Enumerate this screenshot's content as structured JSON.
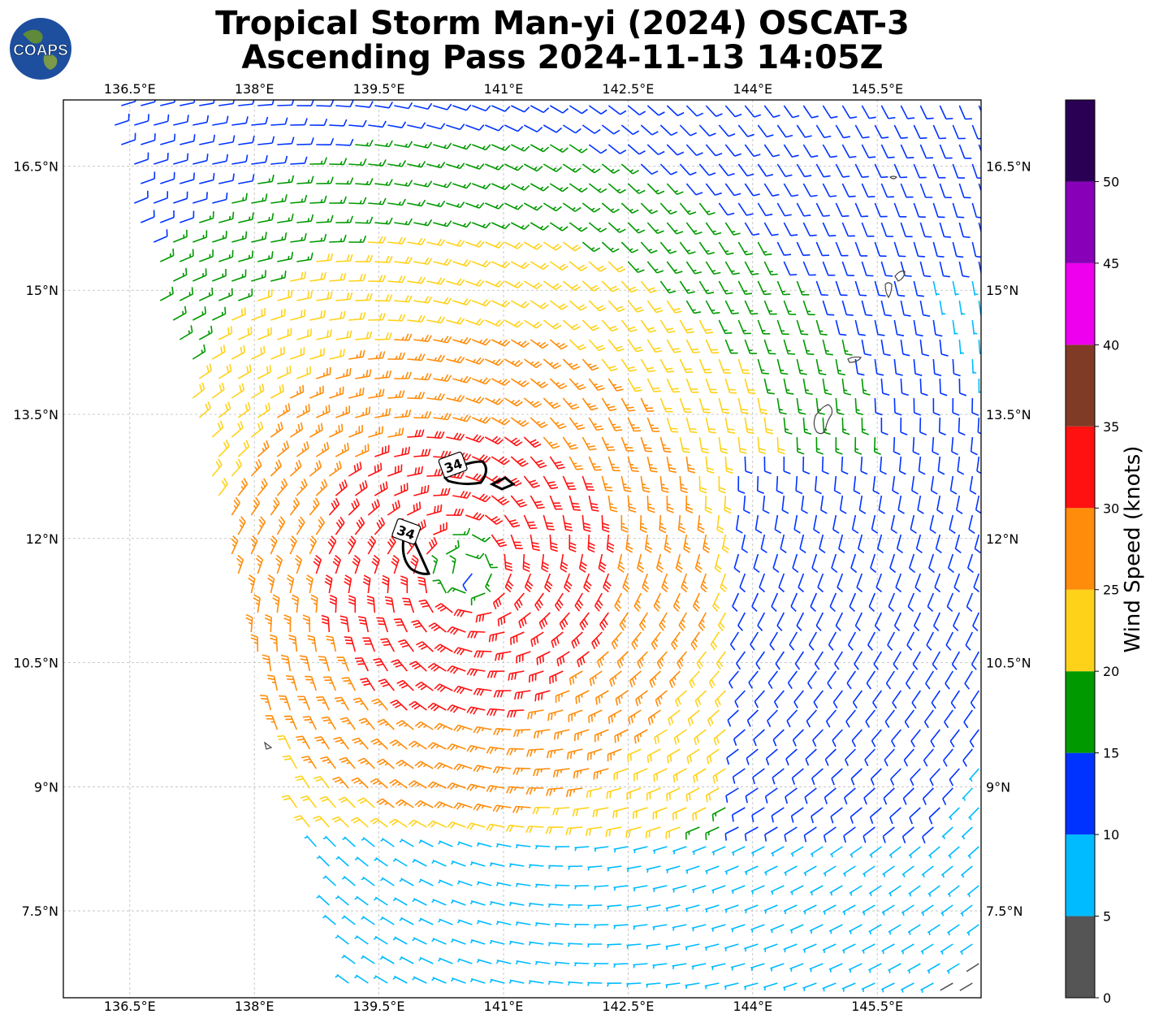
{
  "title": {
    "line1": "Tropical Storm Man-yi (2024) OSCAT-3",
    "line2": "Ascending Pass 2024-11-13 14:05Z"
  },
  "logo": {
    "text": "COAPS",
    "icon": "globe-icon"
  },
  "map": {
    "lon_range": [
      135.7,
      146.75
    ],
    "lat_range": [
      6.45,
      17.3
    ],
    "lon_ticks": [
      "136.5°E",
      "138°E",
      "139.5°E",
      "141°E",
      "142.5°E",
      "144°E",
      "145.5°E"
    ],
    "lon_tick_values": [
      136.5,
      138,
      139.5,
      141,
      142.5,
      144,
      145.5
    ],
    "lat_ticks": [
      "7.5°N",
      "9°N",
      "10.5°N",
      "12°N",
      "13.5°N",
      "15°N",
      "16.5°N"
    ],
    "lat_tick_values": [
      7.5,
      9,
      10.5,
      12,
      13.5,
      15,
      16.5
    ],
    "storm_center": {
      "lon": 140.55,
      "lat": 11.6
    },
    "contour_labels": [
      "34",
      "34"
    ],
    "gridlines": true
  },
  "colorbar": {
    "label": "Wind Speed (knots)",
    "ticks": [
      "0",
      "5",
      "10",
      "15",
      "20",
      "25",
      "30",
      "35",
      "40",
      "45",
      "50"
    ],
    "tick_values": [
      0,
      5,
      10,
      15,
      20,
      25,
      30,
      35,
      40,
      45,
      50
    ],
    "max": 55,
    "colors": [
      "#555555",
      "#00bbff",
      "#0033ff",
      "#009900",
      "#ffd21a",
      "#ff8c0a",
      "#ff1111",
      "#7f3b26",
      "#ee00ee",
      "#8800b8",
      "#2a0055"
    ]
  }
}
